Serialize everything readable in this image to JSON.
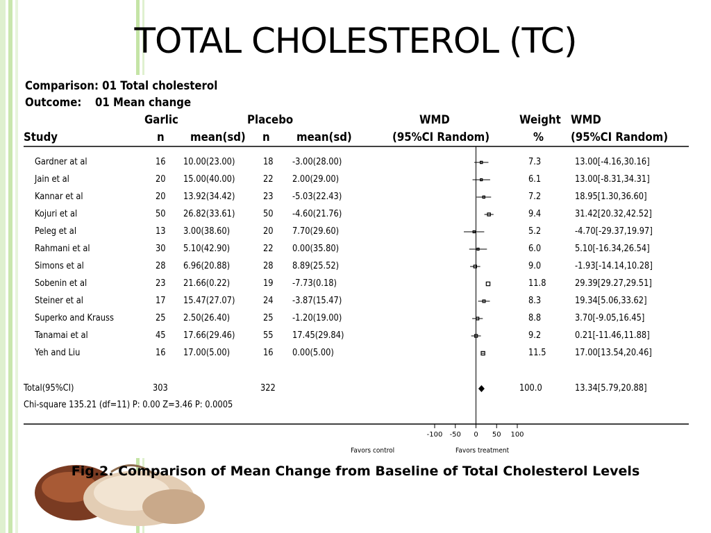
{
  "slide_title": "TOTAL CHOLESTEROL (TC)",
  "caption": "Fig.2. Comparison of Mean Change from Baseline of Total Cholesterol Levels",
  "header": {
    "comparison": "Comparison: 01 Total cholesterol",
    "outcome_label": "Outcome:",
    "outcome_value": "01 Mean change",
    "garlic": "Garlic",
    "placebo": "Placebo",
    "wmd_plot": "WMD",
    "weight": "Weight",
    "wmd_col": "WMD",
    "study": "Study",
    "n1": "n",
    "mean1": "mean(sd)",
    "n2": "n",
    "mean2": "mean(sd)",
    "ci_plot": "(95%CI Random)",
    "pct": "%",
    "ci_col": "(95%CI Random)"
  },
  "studies": [
    {
      "study": "Gardner at al",
      "n1": "16",
      "mean1": "10.00(23.00)",
      "n2": "18",
      "mean2": "-3.00(28.00)",
      "weight": "7.3",
      "wmd": "13.00[-4.16,30.16]"
    },
    {
      "study": "Jain et al",
      "n1": "20",
      "mean1": "15.00(40.00)",
      "n2": "22",
      "mean2": "2.00(29.00)",
      "weight": "6.1",
      "wmd": "13.00[-8.31,34.31]"
    },
    {
      "study": "Kannar et al",
      "n1": "20",
      "mean1": "13.92(34.42)",
      "n2": "23",
      "mean2": "-5.03(22.43)",
      "weight": "7.2",
      "wmd": "18.95[1.30,36.60]"
    },
    {
      "study": "Kojuri et al",
      "n1": "50",
      "mean1": "26.82(33.61)",
      "n2": "50",
      "mean2": "-4.60(21.76)",
      "weight": "9.4",
      "wmd": "31.42[20.32,42.52]"
    },
    {
      "study": "Peleg et al",
      "n1": "13",
      "mean1": "3.00(38.60)",
      "n2": "20",
      "mean2": "7.70(29.60)",
      "weight": "5.2",
      "wmd": "-4.70[-29.37,19.97]"
    },
    {
      "study": "Rahmani et al",
      "n1": "30",
      "mean1": "5.10(42.90)",
      "n2": "22",
      "mean2": "0.00(35.80)",
      "weight": "6.0",
      "wmd": "5.10[-16.34,26.54]"
    },
    {
      "study": "Simons et al",
      "n1": "28",
      "mean1": "6.96(20.88)",
      "n2": "28",
      "mean2": "8.89(25.52)",
      "weight": "9.0",
      "wmd": "-1.93[-14.14,10.28]"
    },
    {
      "study": "Sobenin et al",
      "n1": "23",
      "mean1": "21.66(0.22)",
      "n2": "19",
      "mean2": "-7.73(0.18)",
      "weight": "11.8",
      "wmd": "29.39[29.27,29.51]"
    },
    {
      "study": "Steiner et al",
      "n1": "17",
      "mean1": "15.47(27.07)",
      "n2": "24",
      "mean2": "-3.87(15.47)",
      "weight": "8.3",
      "wmd": "19.34[5.06,33.62]"
    },
    {
      "study": "Superko and Krauss",
      "n1": "25",
      "mean1": "2.50(26.40)",
      "n2": "25",
      "mean2": "-1.20(19.00)",
      "weight": "8.8",
      "wmd": "3.70[-9.05,16.45]"
    },
    {
      "study": "Tanamai et al",
      "n1": "45",
      "mean1": "17.66(29.46)",
      "n2": "55",
      "mean2": "17.45(29.84)",
      "weight": "9.2",
      "wmd": "0.21[-11.46,11.88]"
    },
    {
      "study": "Yeh and Liu",
      "n1": "16",
      "mean1": "17.00(5.00)",
      "n2": "16",
      "mean2": "0.00(5.00)",
      "weight": "11.5",
      "wmd": "17.00[13.54,20.46]"
    }
  ],
  "total": {
    "label": "Total(95%CI)",
    "n1": "303",
    "n2": "322",
    "weight": "100.0",
    "wmd": "13.34[5.79,20.88]"
  },
  "heterogeneity": "Chi-square 135.21 (df=11) P: 0.00  Z=3.46 P: 0.0005",
  "axis": {
    "favors_left": "Favors control",
    "favors_right": "Favors treatment"
  },
  "chart_data": {
    "type": "forest",
    "xlim": [
      -100,
      100
    ],
    "ticks": [
      -100,
      -50,
      0,
      50,
      100
    ],
    "points": [
      {
        "est": 13.0,
        "lo": -4.16,
        "hi": 30.16,
        "weight": 7.3
      },
      {
        "est": 13.0,
        "lo": -8.31,
        "hi": 34.31,
        "weight": 6.1
      },
      {
        "est": 18.95,
        "lo": 1.3,
        "hi": 36.6,
        "weight": 7.2
      },
      {
        "est": 31.42,
        "lo": 20.32,
        "hi": 42.52,
        "weight": 9.4
      },
      {
        "est": -4.7,
        "lo": -29.37,
        "hi": 19.97,
        "weight": 5.2
      },
      {
        "est": 5.1,
        "lo": -16.34,
        "hi": 26.54,
        "weight": 6.0
      },
      {
        "est": -1.93,
        "lo": -14.14,
        "hi": 10.28,
        "weight": 9.0
      },
      {
        "est": 29.39,
        "lo": 29.27,
        "hi": 29.51,
        "weight": 11.8
      },
      {
        "est": 19.34,
        "lo": 5.06,
        "hi": 33.62,
        "weight": 8.3
      },
      {
        "est": 3.7,
        "lo": -9.05,
        "hi": 16.45,
        "weight": 8.8
      },
      {
        "est": 0.21,
        "lo": -11.46,
        "hi": 11.88,
        "weight": 9.2
      },
      {
        "est": 17.0,
        "lo": 13.54,
        "hi": 20.46,
        "weight": 11.5
      }
    ],
    "pooled": {
      "est": 13.34,
      "lo": 5.79,
      "hi": 20.88
    }
  }
}
